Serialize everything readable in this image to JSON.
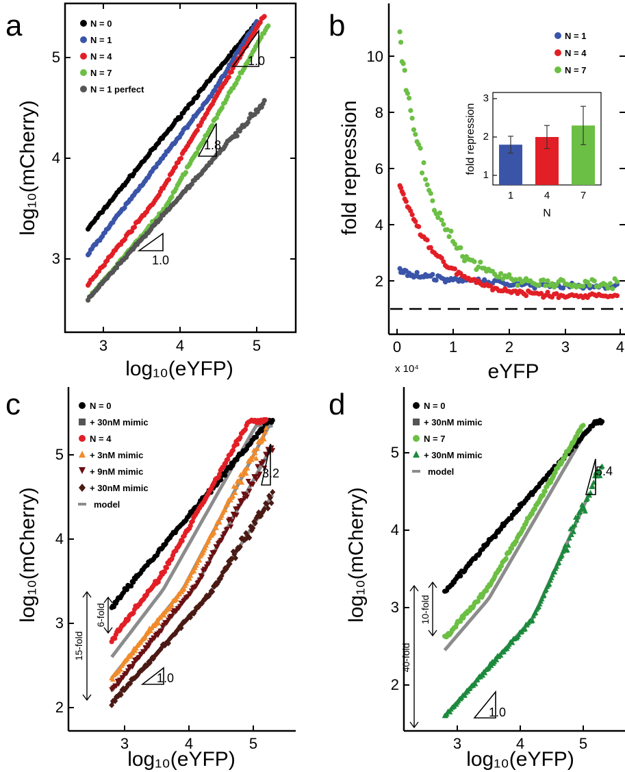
{
  "panels": {
    "a": {
      "letter": "a",
      "xlabel": "log₁₀(eYFP)",
      "ylabel": "log₁₀(mCherry)",
      "xticks": [
        "3",
        "4",
        "5"
      ],
      "yticks": [
        "3",
        "4",
        "5"
      ],
      "slopes": [
        "1.0",
        "1.8",
        "1.0"
      ]
    },
    "b": {
      "letter": "b",
      "xlabel": "eYFP",
      "ylabel": "fold repression",
      "xticks": [
        "0",
        "1",
        "2",
        "3",
        "4"
      ],
      "yticks": [
        "2",
        "4",
        "6",
        "8",
        "10"
      ],
      "multiplier": "x 10⁴",
      "inset": {
        "ylabel": "fold repression",
        "xlabel": "N",
        "xticks": [
          "1",
          "4",
          "7"
        ],
        "yticks": [
          "1",
          "2",
          "3"
        ]
      }
    },
    "c": {
      "letter": "c",
      "xlabel": "log₁₀(eYFP)",
      "ylabel": "log₁₀(mCherry)",
      "xticks": [
        "3",
        "4",
        "5"
      ],
      "yticks": [
        "2",
        "3",
        "4",
        "5"
      ],
      "slopes": [
        "3.2",
        "1.0"
      ],
      "fold_small": "6-fold",
      "fold_large": "15-fold"
    },
    "d": {
      "letter": "d",
      "xlabel": "log₁₀(eYFP)",
      "ylabel": "log₁₀(mCherry)",
      "xticks": [
        "3",
        "4",
        "5"
      ],
      "yticks": [
        "2",
        "3",
        "4",
        "5"
      ],
      "slopes": [
        "5.4",
        "1.0"
      ],
      "fold_small": "10-fold",
      "fold_large": "40-fold"
    }
  },
  "colors": {
    "black": "#000000",
    "blue": "#3a54a8",
    "red": "#e21f26",
    "green": "#6cbf45",
    "gray": "#555555",
    "orange": "#f28b2a",
    "darkred": "#6b0f12",
    "maroon": "#4a1a14",
    "model": "#8c8c8c",
    "darkgreen": "#1b8a3c"
  },
  "chart_data": [
    {
      "panel": "a",
      "type": "scatter",
      "xlabel": "log₁₀(eYFP)",
      "ylabel": "log₁₀(mCherry)",
      "xlim": [
        2.5,
        5.6
      ],
      "ylim": [
        2.45,
        5.5
      ],
      "legend": [
        "N = 0",
        "N = 1",
        "N = 4",
        "N = 7",
        "N = 1 perfect"
      ],
      "series": [
        {
          "name": "N = 0",
          "color": "black",
          "marker": "circle",
          "x": [
            2.8,
            5.0
          ],
          "y": [
            3.3,
            5.35
          ]
        },
        {
          "name": "N = 1",
          "color": "blue",
          "marker": "circle",
          "x": [
            2.8,
            5.0
          ],
          "y": [
            3.05,
            5.4
          ]
        },
        {
          "name": "N = 4",
          "color": "red",
          "marker": "circle",
          "x": [
            2.8,
            5.1
          ],
          "y": [
            2.75,
            5.4
          ]
        },
        {
          "name": "N = 7",
          "color": "green",
          "marker": "circle",
          "x": [
            2.8,
            5.15
          ],
          "y": [
            2.6,
            5.4
          ]
        },
        {
          "name": "N = 1 perfect",
          "color": "gray",
          "marker": "circle",
          "x": [
            2.8,
            5.1
          ],
          "y": [
            2.6,
            4.55
          ]
        }
      ]
    },
    {
      "panel": "b",
      "type": "scatter",
      "xlabel": "eYFP",
      "ylabel": "fold repression",
      "x_multiplier": "x 10⁴",
      "xlim": [
        0,
        4
      ],
      "ylim": [
        0,
        11.5
      ],
      "legend": [
        "N = 1",
        "N = 4",
        "N = 7"
      ],
      "series": [
        {
          "name": "N = 1",
          "color": "blue",
          "x": [
            0.05,
            0.5,
            1.0,
            2.0,
            3.0,
            3.9
          ],
          "y": [
            2.35,
            2.2,
            2.1,
            1.9,
            1.8,
            1.8
          ]
        },
        {
          "name": "N = 4",
          "color": "red",
          "x": [
            0.05,
            0.2,
            0.5,
            1.0,
            2.0,
            3.0,
            3.9
          ],
          "y": [
            5.6,
            4.8,
            3.8,
            2.7,
            2.0,
            1.6,
            1.5
          ]
        },
        {
          "name": "N = 7",
          "color": "green",
          "x": [
            0.05,
            0.2,
            0.5,
            1.0,
            2.0,
            3.0,
            3.9
          ],
          "y": [
            11.1,
            9.5,
            6.0,
            3.6,
            2.4,
            2.0,
            1.9
          ]
        }
      ],
      "reference_line": 1,
      "inset": {
        "type": "bar",
        "categories": [
          "1",
          "4",
          "7"
        ],
        "values": [
          1.8,
          2.0,
          2.3
        ],
        "errors": [
          0.22,
          0.3,
          0.5
        ],
        "ylim": [
          0.8,
          3.1
        ],
        "xlabel": "N",
        "ylabel": "fold repression"
      }
    },
    {
      "panel": "c",
      "type": "scatter",
      "xlabel": "log₁₀(eYFP)",
      "ylabel": "log₁₀(mCherry)",
      "xlim": [
        2.0,
        5.8
      ],
      "ylim": [
        1.85,
        5.6
      ],
      "legend": [
        "N = 0",
        "+ 30nM mimic",
        "N = 4",
        "+ 3nM mimic",
        "+ 9nM mimic",
        "+ 30nM mimic",
        "model"
      ],
      "series": [
        {
          "name": "N = 0",
          "color": "black",
          "x": [
            2.8,
            5.3
          ],
          "y": [
            3.2,
            5.4
          ]
        },
        {
          "name": "N = 4",
          "color": "red",
          "x": [
            2.8,
            5.2
          ],
          "y": [
            2.8,
            5.35
          ]
        },
        {
          "name": "+ 3nM mimic",
          "color": "orange",
          "x": [
            2.8,
            5.2
          ],
          "y": [
            2.35,
            5.4
          ]
        },
        {
          "name": "+ 9nM mimic",
          "color": "darkred",
          "x": [
            2.8,
            5.3
          ],
          "y": [
            2.2,
            4.8
          ]
        },
        {
          "name": "+ 30nM mimic",
          "color": "maroon",
          "x": [
            2.8,
            5.3
          ],
          "y": [
            2.1,
            4.4
          ]
        }
      ],
      "model_lines": [
        [
          2.8,
          2.6,
          5.0,
          5.0
        ],
        [
          2.8,
          2.35,
          5.2,
          4.9
        ],
        [
          2.8,
          2.2,
          5.3,
          4.7
        ],
        [
          2.8,
          2.05,
          5.3,
          4.2
        ]
      ]
    },
    {
      "panel": "d",
      "type": "scatter",
      "xlabel": "log₁₀(eYFP)",
      "ylabel": "log₁₀(mCherry)",
      "xlim": [
        1.8,
        5.6
      ],
      "ylim": [
        1.5,
        5.5
      ],
      "legend": [
        "N = 0",
        "+ 30nM mimic",
        "N = 7",
        "+ 30nM mimic",
        "model"
      ],
      "series": [
        {
          "name": "N = 0",
          "color": "black",
          "x": [
            2.8,
            5.3
          ],
          "y": [
            3.2,
            5.4
          ]
        },
        {
          "name": "N = 7",
          "color": "green",
          "x": [
            2.8,
            5.0
          ],
          "y": [
            2.6,
            5.3
          ]
        },
        {
          "name": "+ 30nM mimic",
          "color": "darkgreen",
          "x": [
            2.8,
            5.3
          ],
          "y": [
            1.65,
            4.3
          ]
        }
      ]
    }
  ]
}
